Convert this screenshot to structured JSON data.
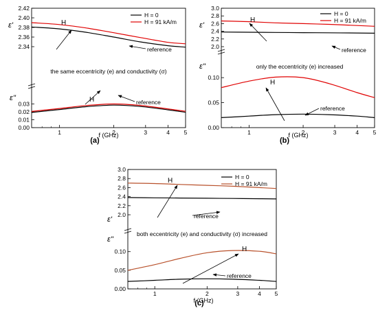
{
  "chart_data": [
    {
      "panel_label": "(a)",
      "type": "line",
      "xlabel": "f (GHz)",
      "xscale": "log",
      "xlim": [
        0.7,
        5
      ],
      "x_ticks": [
        1,
        2,
        3,
        4,
        5
      ],
      "legend": {
        "placement": "top-right",
        "entries": [
          "H = 0",
          "H = 91 kA/m"
        ]
      },
      "legend_colors": [
        "#000000",
        "#e00000"
      ],
      "annotation": "the same eccentricity (e) and conductivity (σ)",
      "subplots": [
        {
          "ylabel": "ε'",
          "ylim": [
            2.34,
            2.42
          ],
          "y_ticks": [
            "2.34",
            "2.36",
            "2.38",
            "2.40",
            "2.42"
          ],
          "x": [
            0.7,
            1.0,
            1.4,
            2.0,
            2.8,
            4.0,
            5.0
          ],
          "series": [
            {
              "name": "H = 0",
              "values": [
                2.381,
                2.377,
                2.37,
                2.36,
                2.35,
                2.342,
                2.339
              ]
            },
            {
              "name": "H = 91 kA/m",
              "values": [
                2.39,
                2.386,
                2.379,
                2.369,
                2.359,
                2.349,
                2.346
              ]
            }
          ],
          "labels": {
            "H": "H",
            "reference": "reference"
          }
        },
        {
          "ylabel": "ε''",
          "ylim": [
            0,
            0.04
          ],
          "y_ticks": [
            "0.00",
            "0.01",
            "0.02",
            "0.03"
          ],
          "x": [
            0.7,
            1.0,
            1.4,
            2.0,
            2.8,
            4.0,
            5.0
          ],
          "series": [
            {
              "name": "H = 0",
              "values": [
                0.0192,
                0.023,
                0.0265,
                0.0285,
                0.0268,
                0.0225,
                0.0195
              ]
            },
            {
              "name": "H = 91 kA/m",
              "values": [
                0.0205,
                0.0243,
                0.028,
                0.03,
                0.0282,
                0.0237,
                0.0207
              ]
            }
          ],
          "labels": {
            "H": "H",
            "reference": "reference"
          }
        }
      ]
    },
    {
      "panel_label": "(b)",
      "type": "line",
      "xlabel": "f (GHz)",
      "xscale": "log",
      "xlim": [
        0.7,
        5
      ],
      "x_ticks": [
        1,
        2,
        3,
        4,
        5
      ],
      "legend": {
        "placement": "top-right",
        "entries": [
          "H = 0",
          "H = 91 kA/m"
        ]
      },
      "legend_colors": [
        "#000000",
        "#e00000"
      ],
      "annotation": "only the eccentricity (e) increased",
      "subplots": [
        {
          "ylabel": "ε'",
          "ylim": [
            2.0,
            3.0
          ],
          "y_ticks": [
            "2.0",
            "2.2",
            "2.4",
            "2.6",
            "2.8",
            "3.0"
          ],
          "x": [
            0.7,
            1.0,
            1.4,
            2.0,
            2.8,
            4.0,
            5.0
          ],
          "series": [
            {
              "name": "H = 0",
              "values": [
                2.38,
                2.375,
                2.37,
                2.365,
                2.36,
                2.355,
                2.35
              ]
            },
            {
              "name": "H = 91 kA/m",
              "values": [
                2.67,
                2.65,
                2.62,
                2.6,
                2.58,
                2.55,
                2.53
              ]
            }
          ],
          "labels": {
            "H": "H",
            "reference": "reference"
          }
        },
        {
          "ylabel": "ε''",
          "ylim": [
            0,
            0.14
          ],
          "y_ticks": [
            "0.00",
            "0.05",
            "0.10"
          ],
          "x": [
            0.7,
            1.0,
            1.4,
            2.0,
            2.8,
            4.0,
            5.0
          ],
          "series": [
            {
              "name": "H = 0",
              "values": [
                0.02,
                0.023,
                0.026,
                0.027,
                0.026,
                0.023,
                0.02
              ]
            },
            {
              "name": "H = 91 kA/m",
              "values": [
                0.08,
                0.093,
                0.101,
                0.1,
                0.088,
                0.07,
                0.06
              ]
            }
          ],
          "labels": {
            "H": "H",
            "reference": "reference"
          }
        }
      ]
    },
    {
      "panel_label": "(c)",
      "type": "line",
      "xlabel": "f (GHz)",
      "xscale": "log",
      "xlim": [
        0.7,
        5
      ],
      "x_ticks": [
        1,
        2,
        3,
        4,
        5
      ],
      "legend": {
        "placement": "top-right",
        "entries": [
          "H = 0",
          "H = 91 kA/m"
        ]
      },
      "legend_colors": [
        "#000000",
        "#b8502a"
      ],
      "annotation": "both eccentricity (e) and conductivity (σ) increased",
      "subplots": [
        {
          "ylabel": "ε'",
          "ylim": [
            2.0,
            3.0
          ],
          "y_ticks": [
            "2.0",
            "2.2",
            "2.4",
            "2.6",
            "2.8",
            "3.0"
          ],
          "x": [
            0.7,
            1.0,
            1.4,
            2.0,
            2.8,
            4.0,
            5.0
          ],
          "series": [
            {
              "name": "H = 0",
              "values": [
                2.38,
                2.375,
                2.37,
                2.365,
                2.36,
                2.355,
                2.35
              ]
            },
            {
              "name": "H = 91 kA/m",
              "values": [
                2.7,
                2.69,
                2.67,
                2.65,
                2.63,
                2.6,
                2.58
              ]
            }
          ],
          "labels": {
            "H": "H",
            "reference": "reference"
          }
        },
        {
          "ylabel": "ε''",
          "ylim": [
            0,
            0.14
          ],
          "y_ticks": [
            "0.00",
            "0.05",
            "0.10"
          ],
          "x": [
            0.7,
            1.0,
            1.4,
            2.0,
            2.8,
            4.0,
            5.0
          ],
          "series": [
            {
              "name": "H = 0",
              "values": [
                0.02,
                0.023,
                0.026,
                0.027,
                0.026,
                0.023,
                0.02
              ]
            },
            {
              "name": "H = 91 kA/m",
              "values": [
                0.05,
                0.065,
                0.082,
                0.097,
                0.103,
                0.101,
                0.094
              ]
            }
          ],
          "labels": {
            "H": "H",
            "reference": "reference"
          }
        }
      ]
    }
  ]
}
